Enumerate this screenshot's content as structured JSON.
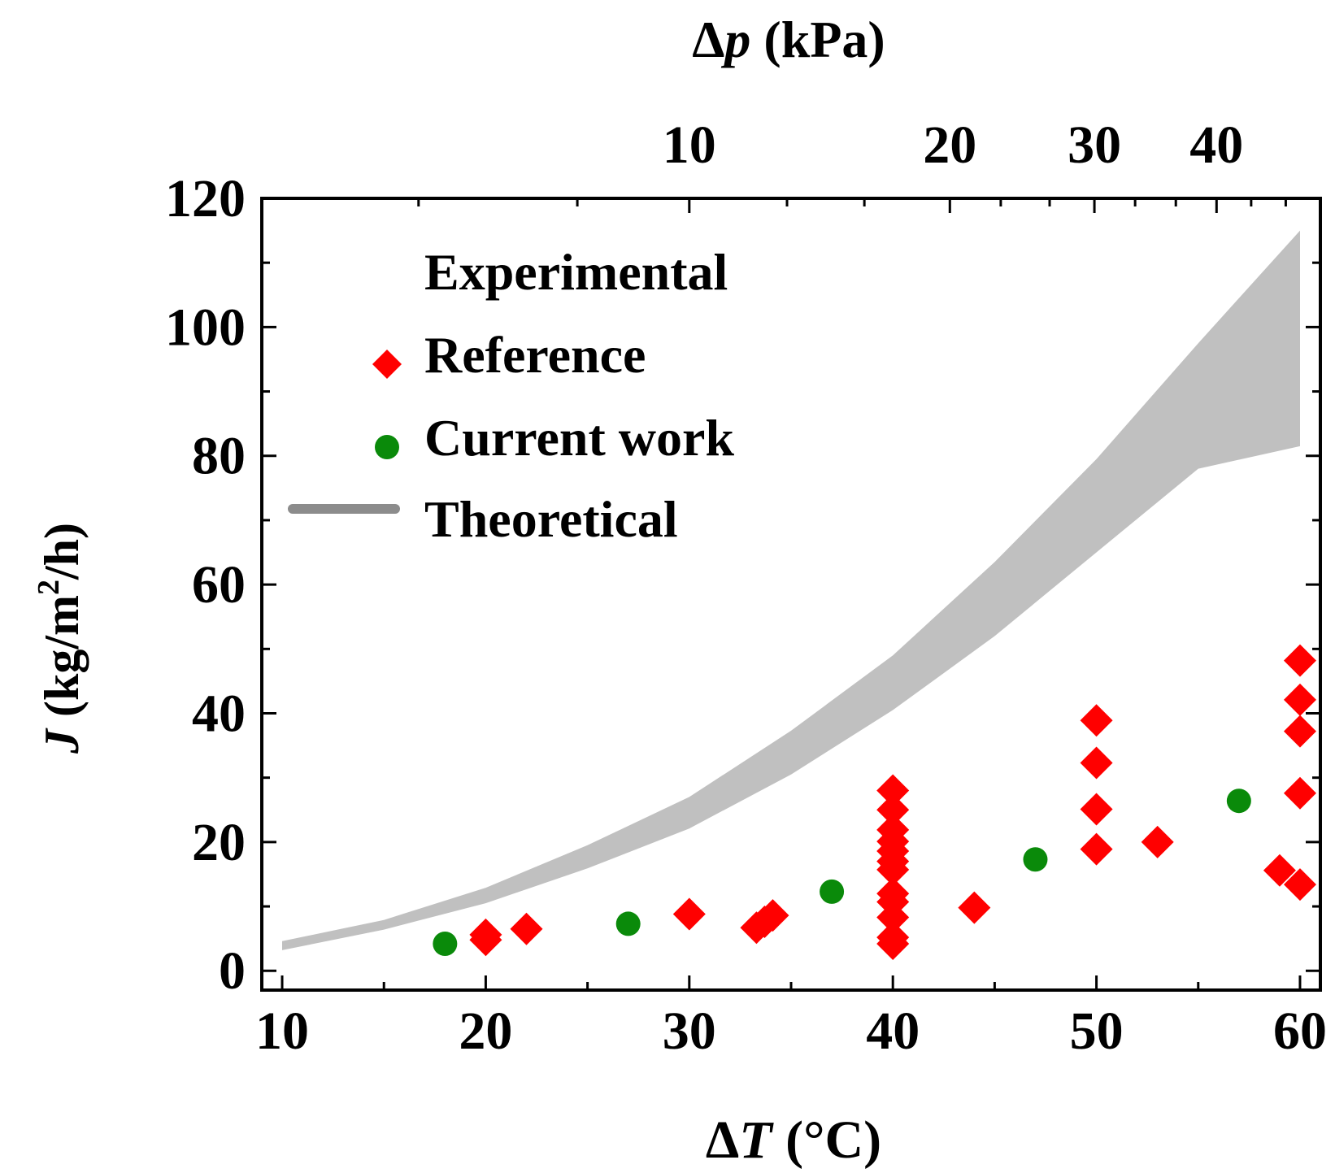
{
  "chart_data": {
    "type": "scatter",
    "x_axis": {
      "label_symbol": "ΔT",
      "label_unit": "(°C)",
      "range": [
        9,
        61
      ],
      "ticks": [
        10,
        20,
        30,
        40,
        50,
        60
      ],
      "tick_labels": [
        "10",
        "20",
        "30",
        "40",
        "50",
        "60"
      ],
      "minor_ticks": [
        15,
        25,
        35,
        45,
        55
      ]
    },
    "y_axis": {
      "label_symbol": "J",
      "label_unit_pre": "(kg/m",
      "label_unit_sup": "2",
      "label_unit_post": "/h)",
      "range": [
        -3,
        120
      ],
      "ticks": [
        0,
        20,
        40,
        60,
        80,
        100,
        120
      ],
      "tick_labels": [
        "0",
        "20",
        "40",
        "60",
        "80",
        "100",
        "120"
      ],
      "minor_ticks": [
        10,
        30,
        50,
        70,
        90,
        110
      ]
    },
    "top_axis": {
      "label_symbol": "Δp",
      "label_unit": "(kPa)",
      "ticks_at_dT": [
        30,
        42.8,
        49.9,
        55.9
      ],
      "tick_labels": [
        "10",
        "20",
        "30",
        "40"
      ],
      "minor_ticks_at_dT": [
        16.7,
        24.5,
        34.8,
        38.6,
        45.3,
        47.7,
        51.9,
        53.9,
        57.6,
        59.3
      ]
    },
    "legend": {
      "header": "Experimental",
      "entries": [
        {
          "label": "Reference",
          "marker": "diamond",
          "color": "#ff0000"
        },
        {
          "label": "Current work",
          "marker": "circle",
          "color": "#0a8a0a"
        },
        {
          "label": "Theoretical",
          "marker": "band",
          "color": "#8c8c8c"
        }
      ],
      "position": "top-left"
    },
    "series": [
      {
        "name": "Reference",
        "marker": "diamond",
        "color": "#ff0000",
        "points": [
          [
            20,
            4.8
          ],
          [
            20,
            5.6
          ],
          [
            22,
            6.5
          ],
          [
            30,
            8.8
          ],
          [
            33.3,
            6.7
          ],
          [
            33.7,
            7.6
          ],
          [
            34.1,
            8.6
          ],
          [
            40,
            4.2
          ],
          [
            40,
            5.2
          ],
          [
            40,
            8.3
          ],
          [
            40,
            10.7
          ],
          [
            40,
            12.0
          ],
          [
            40,
            15.7
          ],
          [
            40,
            17.0
          ],
          [
            40,
            18.6
          ],
          [
            40,
            20.1
          ],
          [
            40,
            21.9
          ],
          [
            40,
            25.0
          ],
          [
            40,
            28.0
          ],
          [
            44,
            9.8
          ],
          [
            50,
            18.9
          ],
          [
            50,
            25.1
          ],
          [
            50,
            32.3
          ],
          [
            50,
            38.9
          ],
          [
            53,
            20.0
          ],
          [
            59,
            15.6
          ],
          [
            60,
            13.4
          ],
          [
            60,
            27.6
          ],
          [
            60,
            37.2
          ],
          [
            60,
            42.1
          ],
          [
            60,
            48.2
          ]
        ]
      },
      {
        "name": "Current work",
        "marker": "circle",
        "color": "#0a8a0a",
        "points": [
          [
            18,
            4.2
          ],
          [
            27,
            7.3
          ],
          [
            37,
            12.3
          ],
          [
            47,
            17.3
          ],
          [
            57,
            26.4
          ]
        ]
      }
    ],
    "band": {
      "name": "Theoretical",
      "color": "#c0c0c0",
      "x": [
        10,
        15,
        20,
        25,
        30,
        35,
        40,
        45,
        50,
        55,
        60
      ],
      "lower": [
        3.2,
        6.4,
        10.5,
        15.9,
        22.1,
        30.5,
        40.5,
        52.0,
        65.0,
        78.0,
        81.5
      ],
      "upper": [
        4.6,
        7.9,
        12.9,
        19.5,
        27.0,
        37.3,
        49.0,
        63.5,
        79.5,
        97.5,
        115.0
      ]
    }
  }
}
